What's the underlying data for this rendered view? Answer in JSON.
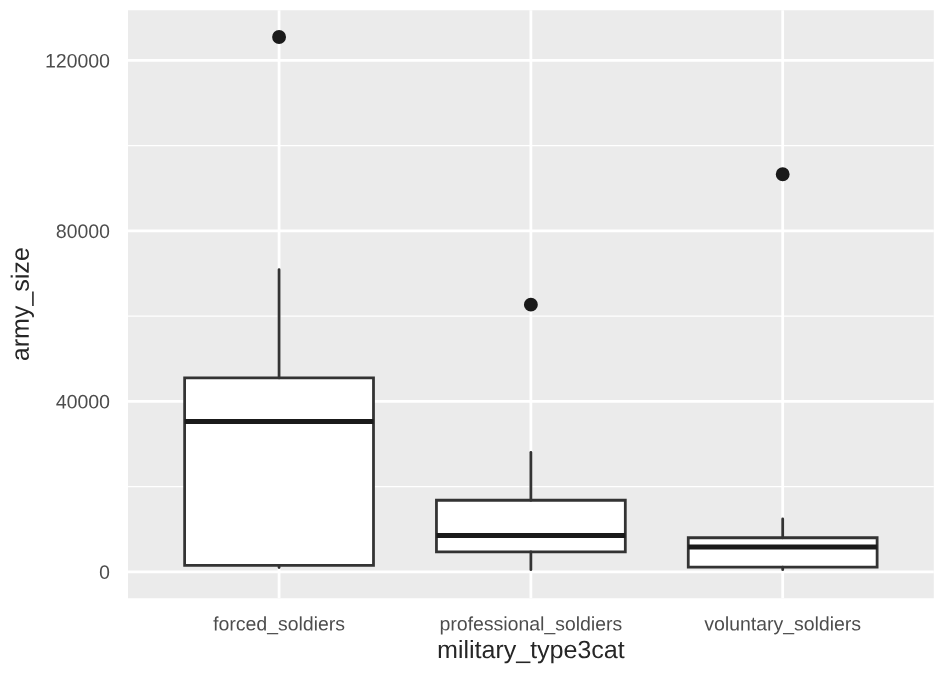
{
  "chart_data": {
    "type": "box",
    "xlabel": "military_type3cat",
    "ylabel": "army_size",
    "categories": [
      "forced_soldiers",
      "professional_soldiers",
      "voluntary_soldiers"
    ],
    "boxes": [
      {
        "low": 1000,
        "q1": 1500,
        "median": 35300,
        "q3": 45500,
        "high": 70900,
        "outliers": [
          125500
        ]
      },
      {
        "low": 500,
        "q1": 4700,
        "median": 8500,
        "q3": 16800,
        "high": 28000,
        "outliers": [
          62700
        ]
      },
      {
        "low": 500,
        "q1": 1100,
        "median": 5800,
        "q3": 8000,
        "high": 12400,
        "outliers": [
          93300
        ]
      }
    ],
    "ylim": [
      -6200,
      131800
    ],
    "yticks": [
      0,
      40000,
      80000,
      120000
    ],
    "grid": true
  }
}
